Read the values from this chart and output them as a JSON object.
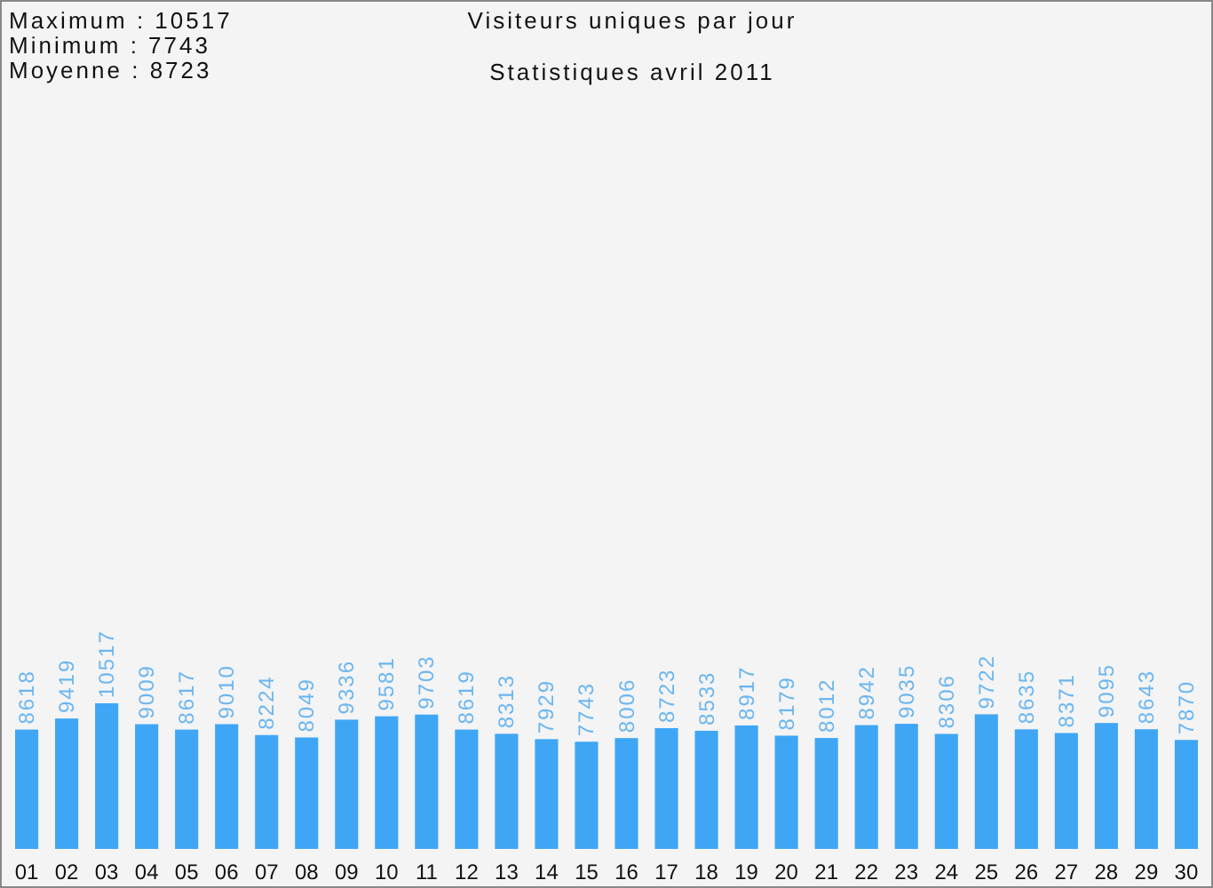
{
  "chart_data": {
    "type": "bar",
    "title": "Visiteurs uniques par jour",
    "subtitle": "Statistiques avril 2011",
    "annotations": [
      "Maximum : 10517",
      "Minimum : 7743",
      "Moyenne : 8723"
    ],
    "categories": [
      "01",
      "02",
      "03",
      "04",
      "05",
      "06",
      "07",
      "08",
      "09",
      "10",
      "11",
      "12",
      "13",
      "14",
      "15",
      "16",
      "17",
      "18",
      "19",
      "20",
      "21",
      "22",
      "23",
      "24",
      "25",
      "26",
      "27",
      "28",
      "29",
      "30"
    ],
    "values": [
      8618,
      9419,
      10517,
      9009,
      8617,
      9010,
      8224,
      8049,
      9336,
      9581,
      9703,
      8619,
      8313,
      7929,
      7743,
      8006,
      8723,
      8533,
      8917,
      8179,
      8012,
      8942,
      9035,
      8306,
      9722,
      8635,
      8371,
      9095,
      8643,
      7870
    ],
    "color": "#3fa6f5",
    "data_labels": true
  }
}
